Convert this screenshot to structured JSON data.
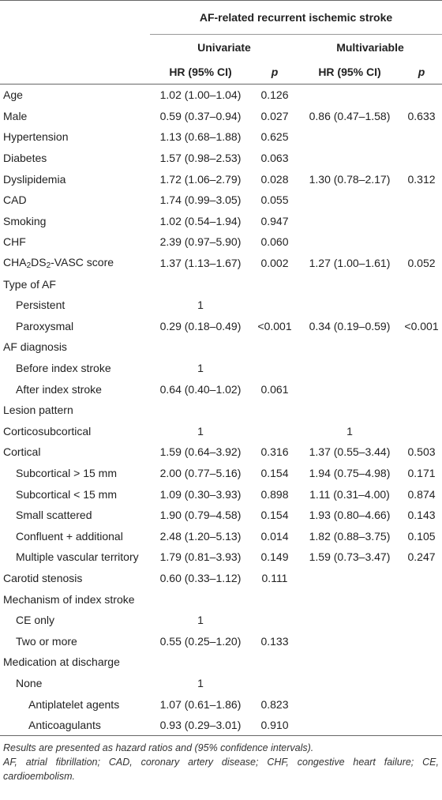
{
  "header": {
    "group_title": "AF-related recurrent ischemic stroke",
    "univariate": "Univariate",
    "multivariable": "Multivariable",
    "hr_label": "HR (95% CI)",
    "p_label": "p"
  },
  "rows": [
    {
      "label": "Age",
      "indent": 0,
      "u_hr": "1.02 (1.00–1.04)",
      "u_p": "0.126",
      "m_hr": "",
      "m_p": ""
    },
    {
      "label": "Male",
      "indent": 0,
      "u_hr": "0.59 (0.37–0.94)",
      "u_p": "0.027",
      "m_hr": "0.86 (0.47–1.58)",
      "m_p": "0.633"
    },
    {
      "label": "Hypertension",
      "indent": 0,
      "u_hr": "1.13 (0.68–1.88)",
      "u_p": "0.625",
      "m_hr": "",
      "m_p": ""
    },
    {
      "label": "Diabetes",
      "indent": 0,
      "u_hr": "1.57 (0.98–2.53)",
      "u_p": "0.063",
      "m_hr": "",
      "m_p": ""
    },
    {
      "label": "Dyslipidemia",
      "indent": 0,
      "u_hr": "1.72 (1.06–2.79)",
      "u_p": "0.028",
      "m_hr": "1.30 (0.78–2.17)",
      "m_p": "0.312"
    },
    {
      "label": "CAD",
      "indent": 0,
      "u_hr": "1.74 (0.99–3.05)",
      "u_p": "0.055",
      "m_hr": "",
      "m_p": ""
    },
    {
      "label": "Smoking",
      "indent": 0,
      "u_hr": "1.02 (0.54–1.94)",
      "u_p": "0.947",
      "m_hr": "",
      "m_p": ""
    },
    {
      "label": "CHF",
      "indent": 0,
      "u_hr": "2.39 (0.97–5.90)",
      "u_p": "0.060",
      "m_hr": "",
      "m_p": ""
    },
    {
      "label": "CHA2DS2-VASC score",
      "indent": 0,
      "u_hr": "1.37 (1.13–1.67)",
      "u_p": "0.002",
      "m_hr": "1.27 (1.00–1.61)",
      "m_p": "0.052"
    },
    {
      "label": "Type of AF",
      "indent": 0,
      "u_hr": "",
      "u_p": "",
      "m_hr": "",
      "m_p": ""
    },
    {
      "label": "Persistent",
      "indent": 1,
      "u_hr": "1",
      "u_p": "",
      "m_hr": "",
      "m_p": ""
    },
    {
      "label": "Paroxysmal",
      "indent": 1,
      "u_hr": "0.29 (0.18–0.49)",
      "u_p": "<0.001",
      "m_hr": "0.34 (0.19–0.59)",
      "m_p": "<0.001"
    },
    {
      "label": "AF diagnosis",
      "indent": 0,
      "u_hr": "",
      "u_p": "",
      "m_hr": "",
      "m_p": ""
    },
    {
      "label": "Before index stroke",
      "indent": 1,
      "u_hr": "1",
      "u_p": "",
      "m_hr": "",
      "m_p": ""
    },
    {
      "label": "After index stroke",
      "indent": 1,
      "u_hr": "0.64 (0.40–1.02)",
      "u_p": "0.061",
      "m_hr": "",
      "m_p": ""
    },
    {
      "label": "Lesion pattern",
      "indent": 0,
      "u_hr": "",
      "u_p": "",
      "m_hr": "",
      "m_p": ""
    },
    {
      "label": "Corticosubcortical",
      "indent": 0,
      "u_hr": "1",
      "u_p": "",
      "m_hr": "1",
      "m_p": ""
    },
    {
      "label": "Cortical",
      "indent": 0,
      "u_hr": "1.59 (0.64–3.92)",
      "u_p": "0.316",
      "m_hr": "1.37 (0.55–3.44)",
      "m_p": "0.503"
    },
    {
      "label": "Subcortical > 15 mm",
      "indent": 1,
      "u_hr": "2.00 (0.77–5.16)",
      "u_p": "0.154",
      "m_hr": "1.94 (0.75–4.98)",
      "m_p": "0.171"
    },
    {
      "label": "Subcortical < 15 mm",
      "indent": 1,
      "u_hr": "1.09 (0.30–3.93)",
      "u_p": "0.898",
      "m_hr": "1.11 (0.31–4.00)",
      "m_p": "0.874"
    },
    {
      "label": "Small scattered",
      "indent": 1,
      "u_hr": "1.90 (0.79–4.58)",
      "u_p": "0.154",
      "m_hr": "1.93 (0.80–4.66)",
      "m_p": "0.143"
    },
    {
      "label": "Confluent + additional",
      "indent": 1,
      "u_hr": "2.48 (1.20–5.13)",
      "u_p": "0.014",
      "m_hr": "1.82 (0.88–3.75)",
      "m_p": "0.105"
    },
    {
      "label": "Multiple vascular territory",
      "indent": 1,
      "u_hr": "1.79 (0.81–3.93)",
      "u_p": "0.149",
      "m_hr": "1.59 (0.73–3.47)",
      "m_p": "0.247"
    },
    {
      "label": "Carotid stenosis",
      "indent": 0,
      "u_hr": "0.60 (0.33–1.12)",
      "u_p": "0.111",
      "m_hr": "",
      "m_p": ""
    },
    {
      "label": "Mechanism of index stroke",
      "indent": 0,
      "u_hr": "",
      "u_p": "",
      "m_hr": "",
      "m_p": ""
    },
    {
      "label": "CE only",
      "indent": 1,
      "u_hr": "1",
      "u_p": "",
      "m_hr": "",
      "m_p": ""
    },
    {
      "label": "Two or more",
      "indent": 1,
      "u_hr": "0.55 (0.25–1.20)",
      "u_p": "0.133",
      "m_hr": "",
      "m_p": ""
    },
    {
      "label": "Medication at discharge",
      "indent": 0,
      "u_hr": "",
      "u_p": "",
      "m_hr": "",
      "m_p": ""
    },
    {
      "label": "None",
      "indent": 1,
      "u_hr": "1",
      "u_p": "",
      "m_hr": "",
      "m_p": ""
    },
    {
      "label": "Antiplatelet agents",
      "indent": 2,
      "u_hr": "1.07 (0.61–1.86)",
      "u_p": "0.823",
      "m_hr": "",
      "m_p": ""
    },
    {
      "label": "Anticoagulants",
      "indent": 2,
      "u_hr": "0.93 (0.29–3.01)",
      "u_p": "0.910",
      "m_hr": "",
      "m_p": ""
    }
  ],
  "notes": [
    "Results are presented as hazard ratios and (95% confidence intervals).",
    "AF, atrial fibrillation; CAD, coronary artery disease; CHF, congestive heart failure; CE, cardioembolism."
  ]
}
